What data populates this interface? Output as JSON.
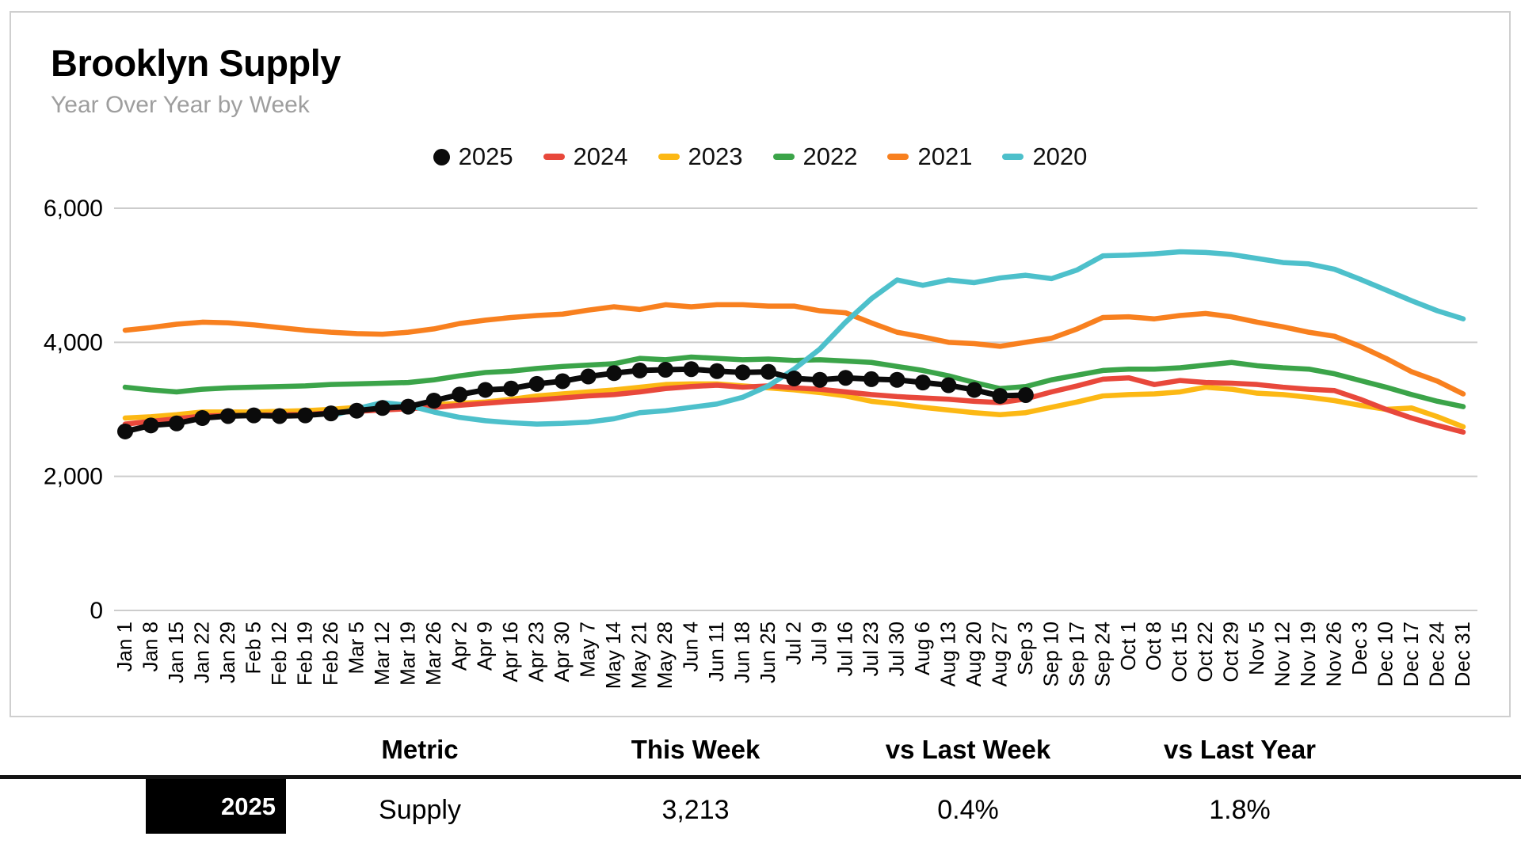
{
  "card": {
    "title": "Brooklyn Supply",
    "subtitle": "Year Over Year by Week"
  },
  "chart_data": {
    "type": "line",
    "title": "Brooklyn Supply",
    "subtitle": "Year Over Year by Week",
    "xlabel": "",
    "ylabel": "",
    "ylim": [
      0,
      6000
    ],
    "grid": true,
    "legend_position": "top-center",
    "gridline_color": "#cccccc",
    "y_ticks": [
      {
        "v": 0,
        "label": "0"
      },
      {
        "v": 2000,
        "label": "2,000"
      },
      {
        "v": 4000,
        "label": "4,000"
      },
      {
        "v": 6000,
        "label": "6,000"
      }
    ],
    "x_labels": [
      "Jan 1",
      "Jan 8",
      "Jan 15",
      "Jan 22",
      "Jan 29",
      "Feb 5",
      "Feb 12",
      "Feb 19",
      "Feb 26",
      "Mar 5",
      "Mar 12",
      "Mar 19",
      "Mar 26",
      "Apr 2",
      "Apr 9",
      "Apr 16",
      "Apr 23",
      "Apr 30",
      "May 7",
      "May 14",
      "May 21",
      "May 28",
      "Jun 4",
      "Jun 11",
      "Jun 18",
      "Jun 25",
      "Jul 2",
      "Jul 9",
      "Jul 16",
      "Jul 23",
      "Jul 30",
      "Aug 6",
      "Aug 13",
      "Aug 20",
      "Aug 27",
      "Sep 3",
      "Sep 10",
      "Sep 17",
      "Sep 24",
      "Oct 1",
      "Oct 8",
      "Oct 15",
      "Oct 22",
      "Oct 29",
      "Nov 5",
      "Nov 12",
      "Nov 19",
      "Nov 26",
      "Dec 3",
      "Dec 10",
      "Dec 17",
      "Dec 24",
      "Dec 31"
    ],
    "series": [
      {
        "name": "2025",
        "color": "#0b0b0b",
        "marker": "circle",
        "z": 6,
        "start_week": 0,
        "values": [
          2670,
          2760,
          2790,
          2870,
          2900,
          2910,
          2900,
          2910,
          2940,
          2980,
          3020,
          3040,
          3130,
          3220,
          3290,
          3310,
          3380,
          3420,
          3490,
          3540,
          3580,
          3590,
          3600,
          3570,
          3550,
          3560,
          3460,
          3440,
          3470,
          3450,
          3440,
          3400,
          3360,
          3290,
          3200,
          3213
        ]
      },
      {
        "name": "2024",
        "color": "#e8483b",
        "marker": "dash",
        "z": 4,
        "start_week": 0,
        "values": [
          2780,
          2820,
          2860,
          2900,
          2910,
          2910,
          2920,
          2920,
          2950,
          2970,
          2990,
          3010,
          3030,
          3060,
          3090,
          3120,
          3140,
          3170,
          3200,
          3220,
          3260,
          3310,
          3340,
          3360,
          3330,
          3350,
          3320,
          3300,
          3260,
          3220,
          3190,
          3170,
          3150,
          3120,
          3100,
          3156,
          3260,
          3350,
          3450,
          3470,
          3370,
          3430,
          3400,
          3390,
          3370,
          3330,
          3300,
          3280,
          3150,
          3000,
          2870,
          2760,
          2660
        ]
      },
      {
        "name": "2023",
        "color": "#fcb814",
        "marker": "dash",
        "z": 3,
        "start_week": 0,
        "values": [
          2870,
          2890,
          2920,
          2960,
          2960,
          2960,
          2970,
          2980,
          3000,
          3030,
          3040,
          3050,
          3070,
          3090,
          3110,
          3150,
          3200,
          3230,
          3260,
          3290,
          3330,
          3370,
          3380,
          3380,
          3350,
          3320,
          3290,
          3250,
          3200,
          3120,
          3080,
          3030,
          2990,
          2950,
          2920,
          2950,
          3030,
          3110,
          3200,
          3220,
          3230,
          3260,
          3330,
          3300,
          3240,
          3220,
          3180,
          3130,
          3060,
          3000,
          3020,
          2890,
          2740
        ]
      },
      {
        "name": "2022",
        "color": "#3ba449",
        "marker": "dash",
        "z": 2,
        "start_week": 0,
        "values": [
          3330,
          3290,
          3260,
          3300,
          3320,
          3330,
          3340,
          3350,
          3370,
          3380,
          3390,
          3400,
          3440,
          3500,
          3550,
          3570,
          3610,
          3640,
          3660,
          3680,
          3760,
          3740,
          3780,
          3760,
          3740,
          3750,
          3730,
          3740,
          3720,
          3700,
          3640,
          3580,
          3500,
          3400,
          3310,
          3340,
          3440,
          3510,
          3580,
          3600,
          3600,
          3620,
          3660,
          3700,
          3650,
          3620,
          3600,
          3530,
          3430,
          3330,
          3220,
          3120,
          3040
        ]
      },
      {
        "name": "2021",
        "color": "#f8801f",
        "marker": "dash",
        "z": 1,
        "start_week": 0,
        "values": [
          4180,
          4220,
          4270,
          4300,
          4290,
          4260,
          4220,
          4180,
          4150,
          4130,
          4120,
          4150,
          4200,
          4280,
          4330,
          4370,
          4400,
          4420,
          4480,
          4530,
          4490,
          4560,
          4530,
          4560,
          4560,
          4540,
          4540,
          4470,
          4440,
          4290,
          4150,
          4080,
          4000,
          3980,
          3940,
          4000,
          4060,
          4200,
          4370,
          4380,
          4350,
          4400,
          4430,
          4380,
          4300,
          4230,
          4150,
          4090,
          3940,
          3760,
          3560,
          3420,
          3230
        ]
      },
      {
        "name": "2020",
        "color": "#4dc0cb",
        "marker": "dash",
        "z": 5,
        "start_week": 8,
        "values": [
          2900,
          3010,
          3100,
          3060,
          2960,
          2880,
          2830,
          2800,
          2780,
          2790,
          2810,
          2860,
          2950,
          2980,
          3030,
          3080,
          3180,
          3350,
          3600,
          3900,
          4300,
          4650,
          4930,
          4850,
          4930,
          4890,
          4960,
          5000,
          4950,
          5080,
          5290,
          5300,
          5320,
          5350,
          5340,
          5310,
          5250,
          5190,
          5170,
          5090,
          4940,
          4780,
          4620,
          4470,
          4350
        ]
      }
    ]
  },
  "table": {
    "headers": [
      "Metric",
      "This Week",
      "vs Last Week",
      "vs Last Year"
    ],
    "row": {
      "year": "2025",
      "year_bg": "#000000",
      "metric": "Supply",
      "this_week": "3,213",
      "vs_last_week": "0.4%",
      "vs_last_year": "1.8%"
    }
  }
}
